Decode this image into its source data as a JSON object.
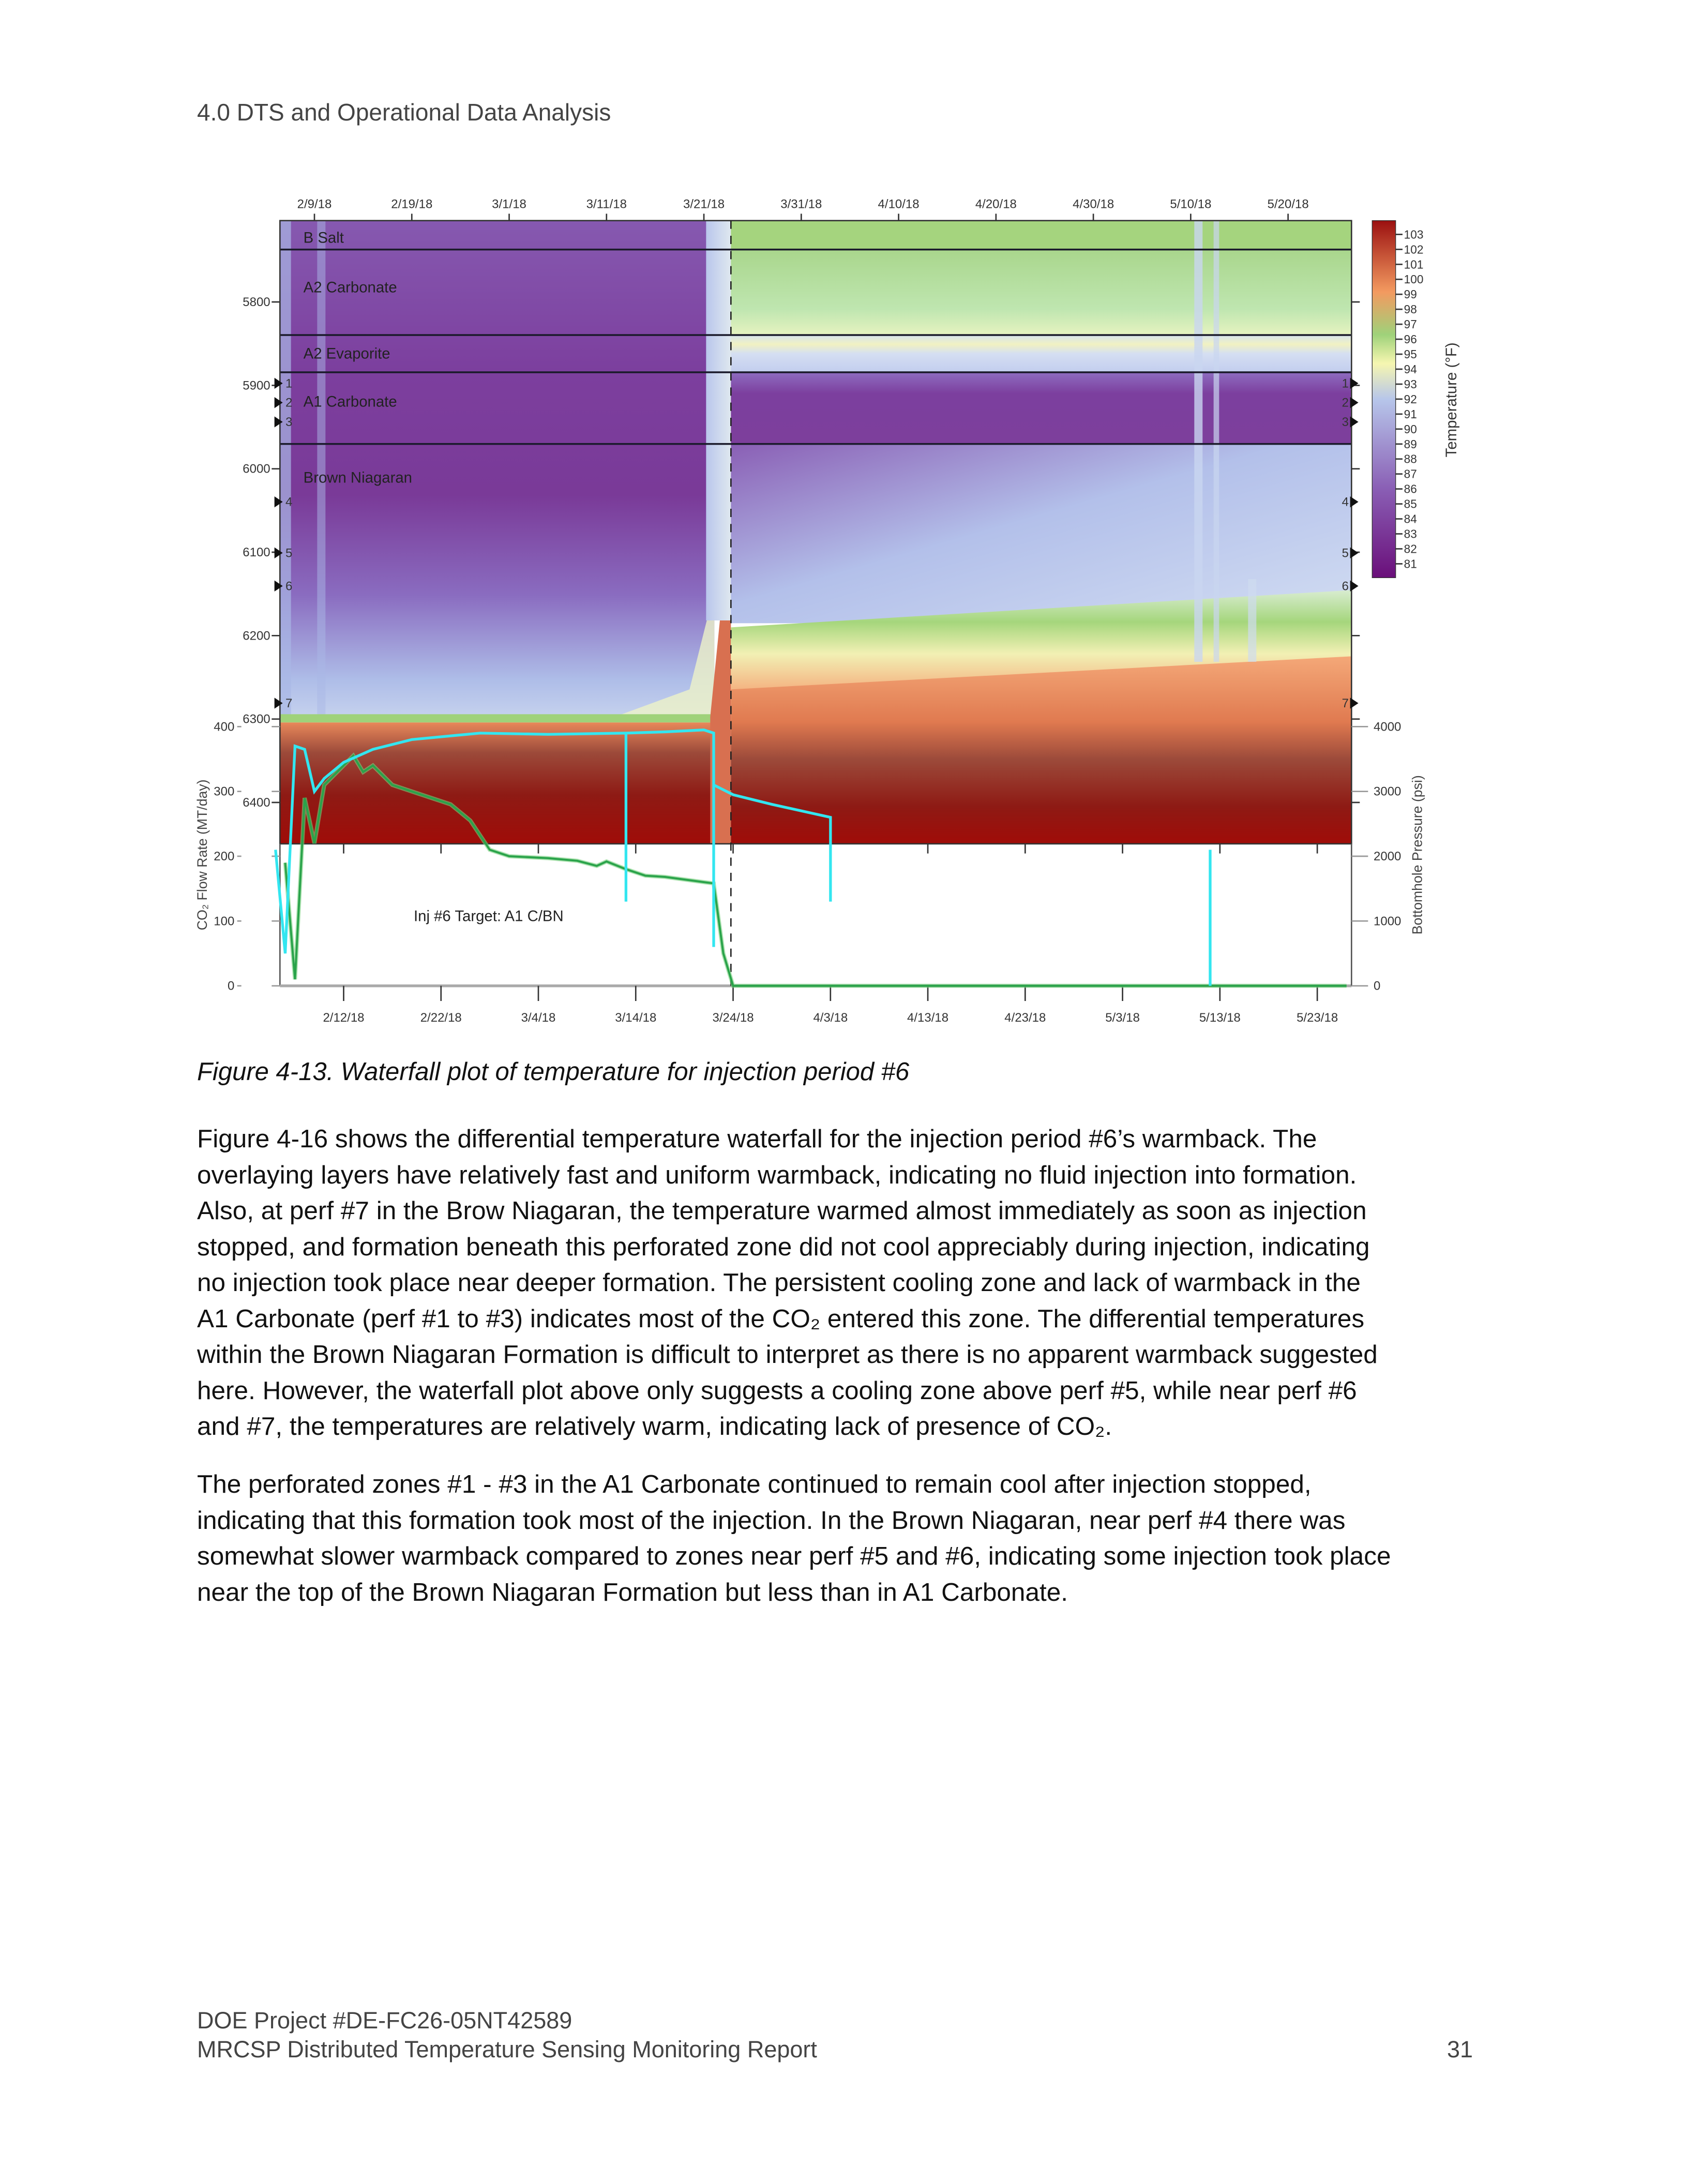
{
  "header": {
    "section": "4.0 DTS and Operational Data Analysis"
  },
  "figure": {
    "caption": "Figure 4-13. Waterfall plot of temperature for injection period #6",
    "annotation": "Inj #6 Target: A1 C/BN"
  },
  "chart_data": {
    "type": "heatmap",
    "overlay_type": "line",
    "top_xaxis_ticks": [
      "2/9/18",
      "2/19/18",
      "3/1/18",
      "3/11/18",
      "3/21/18",
      "3/31/18",
      "4/10/18",
      "4/20/18",
      "4/30/18",
      "5/10/18",
      "5/20/18"
    ],
    "bottom_xaxis_ticks": [
      "2/12/18",
      "2/22/18",
      "3/4/18",
      "3/14/18",
      "3/24/18",
      "4/3/18",
      "4/13/18",
      "4/23/18",
      "5/3/18",
      "5/13/18",
      "5/23/18"
    ],
    "depth_ticks": [
      "5800",
      "5900",
      "6000",
      "6100",
      "6200",
      "6300",
      "6400"
    ],
    "flow_axis": {
      "label": "CO₂ Flow Rate (MT/day)",
      "ticks": [
        "400",
        "300",
        "200",
        "100",
        "0"
      ],
      "ylim": [
        0,
        400
      ]
    },
    "pressure_axis": {
      "label": "Bottomhole Pressure (psi)",
      "ticks": [
        "4000",
        "3000",
        "2000",
        "1000",
        "0"
      ],
      "ylim": [
        0,
        4000
      ]
    },
    "colorbar": {
      "label": "Temperature (°F)",
      "ticks": [
        "103",
        "102",
        "101",
        "100",
        "99",
        "98",
        "97",
        "96",
        "95",
        "94",
        "93",
        "92",
        "91",
        "90",
        "89",
        "88",
        "87",
        "86",
        "85",
        "84",
        "83",
        "82",
        "81"
      ],
      "range": [
        81,
        103
      ],
      "colors": [
        "#6a0f7a",
        "#8a5fb5",
        "#b7c6ea",
        "#f6f6b0",
        "#9fd27a",
        "#f39a60",
        "#9b1010"
      ]
    },
    "formations": [
      "B Salt",
      "A2 Carbonate",
      "A2 Evaporite",
      "A1 Carbonate",
      "Brown Niagaran"
    ],
    "perforations": [
      "1",
      "2",
      "3",
      "4",
      "5",
      "6",
      "7"
    ],
    "injection_stop_marker": "2018-03-24",
    "series": [
      {
        "name": "flow",
        "color": "#2aa34a",
        "axis": "flow",
        "points": [
          [
            "2018-02-06",
            190
          ],
          [
            "2018-02-07",
            10
          ],
          [
            "2018-02-08",
            290
          ],
          [
            "2018-02-09",
            220
          ],
          [
            "2018-02-10",
            310
          ],
          [
            "2018-02-13",
            355
          ],
          [
            "2018-02-14",
            330
          ],
          [
            "2018-02-15",
            340
          ],
          [
            "2018-02-17",
            310
          ],
          [
            "2018-02-19",
            300
          ],
          [
            "2018-02-23",
            280
          ],
          [
            "2018-02-25",
            255
          ],
          [
            "2018-02-27",
            210
          ],
          [
            "2018-03-01",
            200
          ],
          [
            "2018-03-05",
            197
          ],
          [
            "2018-03-08",
            193
          ],
          [
            "2018-03-10",
            185
          ],
          [
            "2018-03-11",
            192
          ],
          [
            "2018-03-13",
            180
          ],
          [
            "2018-03-15",
            170
          ],
          [
            "2018-03-17",
            168
          ],
          [
            "2018-03-21",
            160
          ],
          [
            "2018-03-22",
            158
          ],
          [
            "2018-03-23",
            50
          ],
          [
            "2018-03-24",
            0
          ],
          [
            "2018-05-26",
            0
          ]
        ]
      },
      {
        "name": "pressure",
        "color": "#33e6f0",
        "axis": "pressure",
        "segments": [
          [
            [
              "2018-02-05",
              2100
            ],
            [
              "2018-02-06",
              500
            ],
            [
              "2018-02-07",
              3700
            ],
            [
              "2018-02-08",
              3650
            ],
            [
              "2018-02-09",
              3000
            ],
            [
              "2018-02-10",
              3200
            ],
            [
              "2018-02-12",
              3450
            ],
            [
              "2018-02-15",
              3650
            ],
            [
              "2018-02-19",
              3800
            ],
            [
              "2018-02-26",
              3900
            ],
            [
              "2018-03-05",
              3880
            ],
            [
              "2018-03-13",
              3900
            ],
            [
              "2018-03-13",
              1300
            ],
            [
              "2018-03-13",
              3900
            ],
            [
              "2018-03-17",
              3920
            ],
            [
              "2018-03-21",
              3950
            ],
            [
              "2018-03-22",
              3900
            ],
            [
              "2018-03-22",
              600
            ],
            [
              "2018-03-22",
              3100
            ],
            [
              "2018-03-24",
              2950
            ],
            [
              "2018-03-28",
              2800
            ],
            [
              "2018-04-03",
              2600
            ],
            [
              "2018-04-03",
              1300
            ]
          ],
          [
            [
              "2018-05-12",
              2100
            ],
            [
              "2018-05-12",
              0
            ]
          ]
        ]
      }
    ]
  },
  "body": {
    "paragraph1": [
      "Figure 4-16 shows the differential temperature waterfall for the injection period #6’s warmback. The",
      "overlaying layers have relatively fast and uniform warmback, indicating no fluid injection into formation.",
      "Also, at perf #7 in the Brow Niagaran, the temperature warmed almost immediately as soon as injection",
      "stopped, and formation beneath this perforated zone did not cool appreciably during injection, indicating",
      "no injection took place near deeper formation. The persistent cooling zone and lack of warmback in the",
      "A1 Carbonate (perf #1 to #3) indicates most of the CO₂ entered this zone. The differential temperatures",
      "within the Brown Niagaran Formation is difficult to interpret as there is no apparent warmback suggested",
      "here. However, the waterfall plot above only suggests a cooling zone above perf #5, while near perf #6",
      "and #7, the temperatures are relatively warm, indicating lack of presence of CO₂."
    ],
    "paragraph2": [
      "The perforated zones #1 - #3 in the A1 Carbonate continued to remain cool after injection stopped,",
      "indicating that this formation took most of the injection. In the Brown Niagaran, near perf #4 there was",
      "somewhat slower warmback compared to zones near perf #5 and #6, indicating some injection took place",
      "near the top of the Brown Niagaran Formation but less than in A1 Carbonate."
    ]
  },
  "footer": {
    "project": "DOE Project #DE-FC26-05NT42589",
    "report": "MRCSP Distributed Temperature Sensing Monitoring Report",
    "page_number": "31"
  }
}
